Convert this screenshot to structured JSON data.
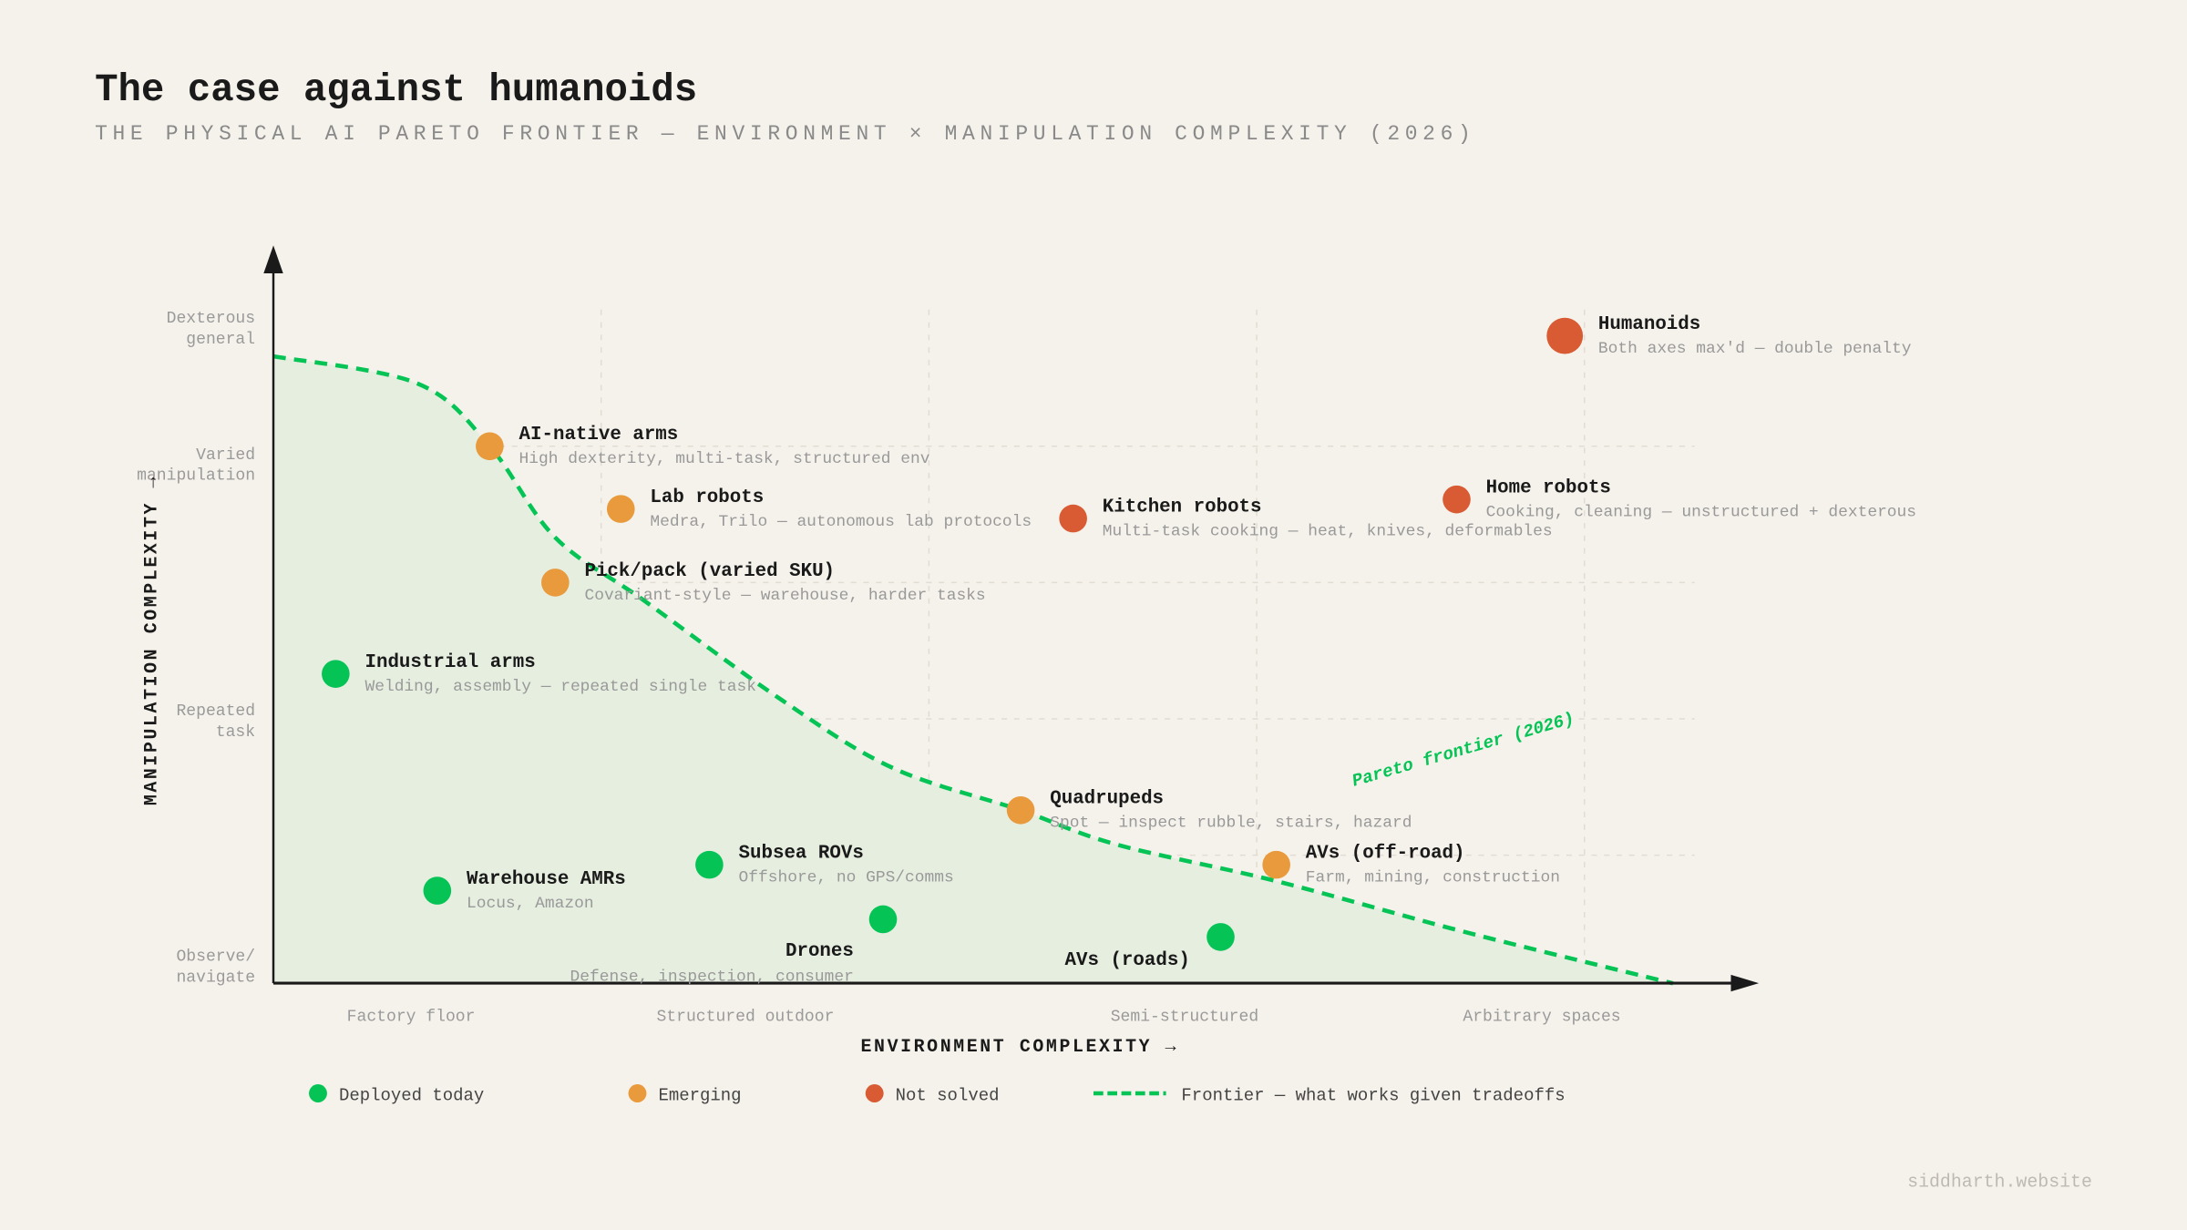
{
  "header": {
    "title": "The case against humanoids",
    "subtitle": "THE PHYSICAL AI PARETO FRONTIER — ENVIRONMENT × MANIPULATION COMPLEXITY (2026)"
  },
  "watermark": "siddharth.website",
  "colors": {
    "background": "#f5f2eb",
    "deployed": "#05c455",
    "emerging": "#e89a3c",
    "not_solved": "#d95b33",
    "frontier": "#05c455",
    "frontier_fill": "#e6eee0"
  },
  "chart_data": {
    "type": "scatter",
    "title": "The case against humanoids",
    "xlabel": "ENVIRONMENT COMPLEXITY →",
    "ylabel": "MANIPULATION COMPLEXITY →",
    "xlim": [
      0,
      4.5
    ],
    "ylim": [
      0,
      5
    ],
    "grid": true,
    "x_ticks": [
      {
        "label": "Factory floor",
        "value": 0.42
      },
      {
        "label": "Structured outdoor",
        "value": 1.44
      },
      {
        "label": "Semi-structured",
        "value": 2.78
      },
      {
        "label": "Arbitrary spaces",
        "value": 3.87
      }
    ],
    "y_ticks": [
      {
        "label": [
          "Dexterous",
          "general"
        ],
        "value": 4.84
      },
      {
        "label": [
          "Varied",
          "manipulation"
        ],
        "value": 3.84
      },
      {
        "label": [
          "Repeated",
          "task"
        ],
        "value": 1.96
      },
      {
        "label": [
          "Observe/",
          "navigate"
        ],
        "value": 0.16
      }
    ],
    "legend": {
      "placement": "bottom",
      "items": [
        {
          "key": "deployed",
          "label": "Deployed today"
        },
        {
          "key": "emerging",
          "label": "Emerging"
        },
        {
          "key": "not_solved",
          "label": "Not solved"
        },
        {
          "key": "frontier",
          "label": "Frontier — what works given tradeoffs"
        }
      ]
    },
    "points": [
      {
        "name": "Humanoids",
        "desc": "Both axes max'd — double penalty",
        "status": "not_solved",
        "x": 3.94,
        "y": 4.81,
        "big": true
      },
      {
        "name": "AI-native arms",
        "desc": "High dexterity, multi-task, structured env",
        "status": "emerging",
        "x": 0.66,
        "y": 4.0
      },
      {
        "name": "Lab robots",
        "desc": "Medra, Trilo — autonomous lab protocols",
        "status": "emerging",
        "x": 1.06,
        "y": 3.54
      },
      {
        "name": "Kitchen robots",
        "desc": "Multi-task cooking — heat, knives, deformables",
        "status": "not_solved",
        "x": 2.44,
        "y": 3.47
      },
      {
        "name": "Home robots",
        "desc": "Cooking, cleaning — unstructured + dexterous",
        "status": "not_solved",
        "x": 3.61,
        "y": 3.61
      },
      {
        "name": "Pick/pack (varied SKU)",
        "desc": "Covariant-style — warehouse, harder tasks",
        "status": "emerging",
        "x": 0.86,
        "y": 3.0
      },
      {
        "name": "Industrial arms",
        "desc": "Welding, assembly — repeated single task",
        "status": "deployed",
        "x": 0.19,
        "y": 2.33
      },
      {
        "name": "Quadrupeds",
        "desc": "Spot — inspect rubble, stairs, hazard",
        "status": "emerging",
        "x": 2.28,
        "y": 1.33
      },
      {
        "name": "AVs (off-road)",
        "desc": "Farm, mining, construction",
        "status": "emerging",
        "x": 3.06,
        "y": 0.93
      },
      {
        "name": "Subsea ROVs",
        "desc": "Offshore, no GPS/comms",
        "status": "deployed",
        "x": 1.33,
        "y": 0.93
      },
      {
        "name": "Warehouse AMRs",
        "desc": "Locus, Amazon",
        "status": "deployed",
        "x": 0.5,
        "y": 0.74
      },
      {
        "name": "Drones",
        "desc": "Defense, inspection, consumer",
        "status": "deployed",
        "x": 1.86,
        "y": 0.53,
        "label_pos": "below-left"
      },
      {
        "name": "AVs (roads)",
        "desc": "",
        "status": "deployed",
        "x": 2.89,
        "y": 0.4,
        "label_pos": "below-left"
      }
    ],
    "frontier": {
      "label": "Pareto frontier (2026)",
      "points": [
        [
          0,
          4.66
        ],
        [
          0.44,
          4.46
        ],
        [
          0.66,
          4.0
        ],
        [
          0.86,
          3.33
        ],
        [
          1.13,
          2.87
        ],
        [
          1.55,
          2.14
        ],
        [
          1.89,
          1.64
        ],
        [
          2.28,
          1.33
        ],
        [
          2.57,
          1.08
        ],
        [
          3.06,
          0.81
        ],
        [
          3.63,
          0.44
        ],
        [
          4.27,
          0.06
        ]
      ]
    }
  }
}
